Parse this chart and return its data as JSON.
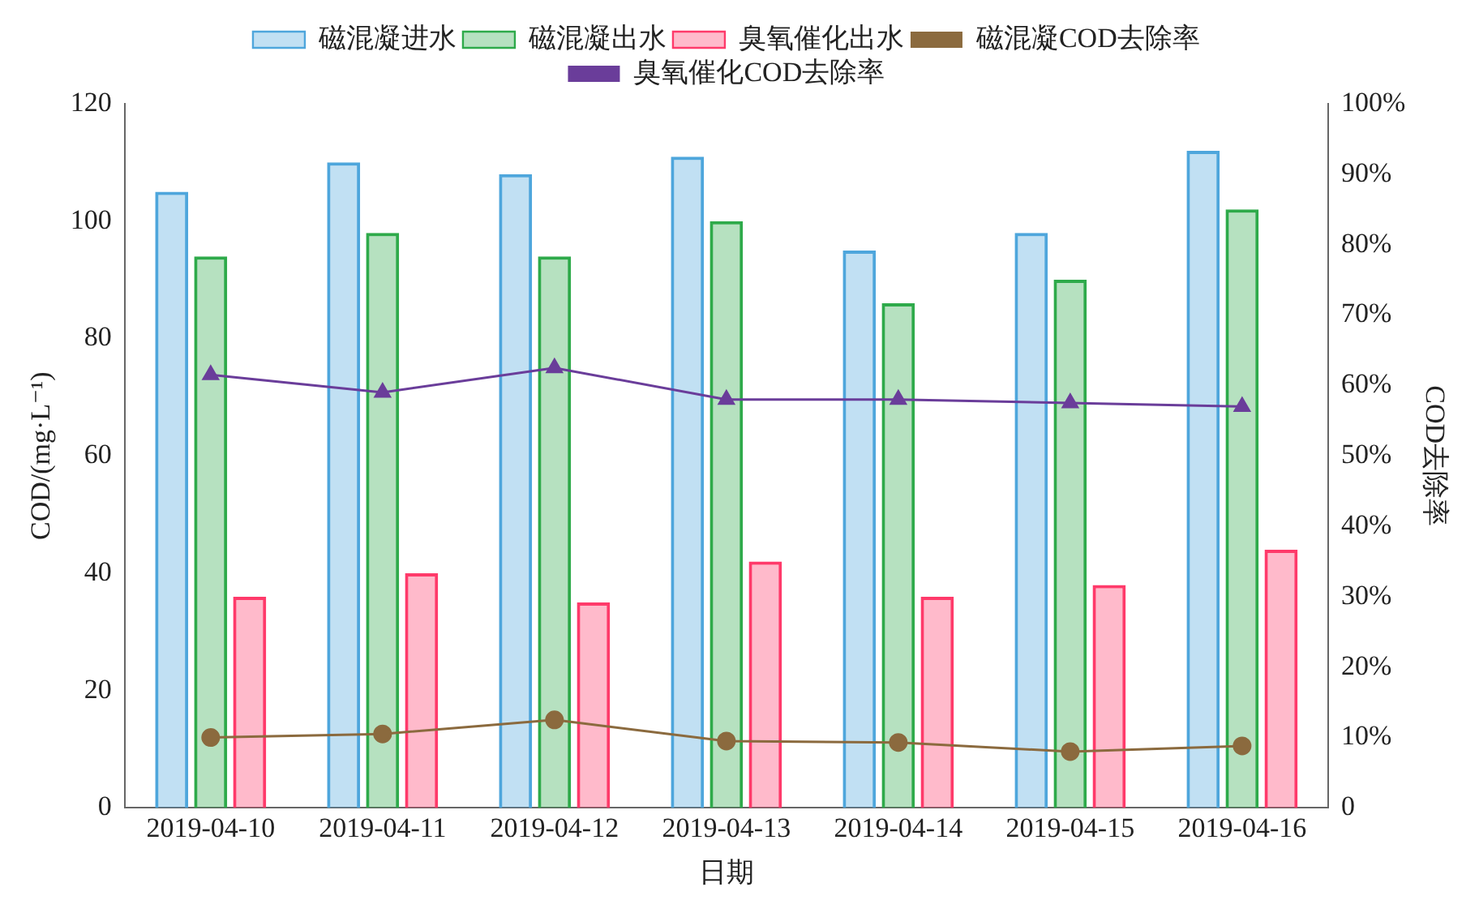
{
  "chart_data": {
    "type": "bar",
    "xlabel": "日期",
    "ylabel": "COD/(mg·L⁻¹)",
    "y2label": "COD去除率",
    "categories": [
      "2019-04-10",
      "2019-04-11",
      "2019-04-12",
      "2019-04-13",
      "2019-04-14",
      "2019-04-15",
      "2019-04-16"
    ],
    "series": [
      {
        "name": "磁混凝进水",
        "color": "#4ea6dc",
        "values": [
          105,
          110,
          108,
          111,
          95,
          98,
          112
        ]
      },
      {
        "name": "磁混凝出水",
        "color": "#2eaa4a",
        "values": [
          94,
          98,
          94,
          100,
          86,
          90,
          102
        ]
      },
      {
        "name": "臭氧催化出水",
        "color": "#ff3a6a",
        "values": [
          36,
          40,
          35,
          42,
          36,
          38,
          44
        ]
      },
      {
        "name": "磁混凝COD去除率",
        "type": "line",
        "axis": "y2",
        "marker": "circle",
        "color": "#8b6a3e",
        "values": [
          10,
          10.5,
          12.5,
          9.5,
          9.3,
          8,
          8.8
        ]
      },
      {
        "name": "臭氧催化COD去除率",
        "type": "line",
        "axis": "y2",
        "marker": "triangle",
        "color": "#6a3d9a",
        "values": [
          61.5,
          59,
          62.5,
          58,
          58,
          57.5,
          57
        ]
      }
    ],
    "ylim": [
      0,
      120
    ],
    "yticks": [
      0,
      20,
      40,
      60,
      80,
      100,
      120
    ],
    "y2lim": [
      0,
      100
    ],
    "y2ticks": [
      0,
      {
        "value": 10,
        "label": "10%"
      },
      {
        "value": 20,
        "label": "20%"
      },
      {
        "value": 30,
        "label": "30%"
      },
      {
        "value": 40,
        "label": "40%"
      },
      {
        "value": 50,
        "label": "50%"
      },
      {
        "value": 60,
        "label": "60%"
      },
      {
        "value": 70,
        "label": "70%"
      },
      {
        "value": 80,
        "label": "80%"
      },
      {
        "value": 90,
        "label": "90%"
      },
      {
        "value": 100,
        "label": "100%"
      }
    ],
    "grid": false,
    "legend": "top"
  }
}
